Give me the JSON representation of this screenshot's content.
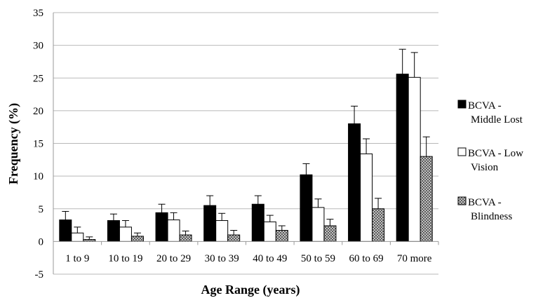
{
  "chart_data": {
    "type": "bar",
    "title": "",
    "xlabel": "Age Range (years)",
    "ylabel": "Frequency (%)",
    "ylim": [
      -5,
      35
    ],
    "yticks": [
      -5,
      0,
      5,
      10,
      15,
      20,
      25,
      30,
      35
    ],
    "grid": true,
    "legend_position": "right",
    "categories": [
      "1 to 9",
      "10 to 19",
      "20 to 29",
      "30 to 39",
      "40 to 49",
      "50 to 59",
      "60 to 69",
      "70 more"
    ],
    "series": [
      {
        "name": "BCVA - Middle Lost",
        "legend_lines": [
          "BCVA -",
          "Middle Lost"
        ],
        "fill": "solid-black",
        "values": [
          3.3,
          3.2,
          4.4,
          5.5,
          5.7,
          10.2,
          18.0,
          25.6
        ],
        "errors": [
          1.3,
          1.0,
          1.3,
          1.5,
          1.3,
          1.7,
          2.7,
          3.8
        ]
      },
      {
        "name": "BCVA - Low Vision",
        "legend_lines": [
          "BCVA - Low",
          "Vision"
        ],
        "fill": "white",
        "values": [
          1.3,
          2.2,
          3.3,
          3.2,
          3.0,
          5.2,
          13.4,
          25.1
        ],
        "errors": [
          0.9,
          1.0,
          1.1,
          1.1,
          1.0,
          1.3,
          2.3,
          3.8
        ]
      },
      {
        "name": "BCVA - Blindness",
        "legend_lines": [
          "BCVA -",
          "Blindness"
        ],
        "fill": "crosshatch-gray",
        "values": [
          0.3,
          0.8,
          1.0,
          1.0,
          1.7,
          2.4,
          5.0,
          13.0
        ],
        "errors": [
          0.4,
          0.5,
          0.6,
          0.7,
          0.7,
          1.0,
          1.6,
          3.0
        ]
      }
    ]
  }
}
